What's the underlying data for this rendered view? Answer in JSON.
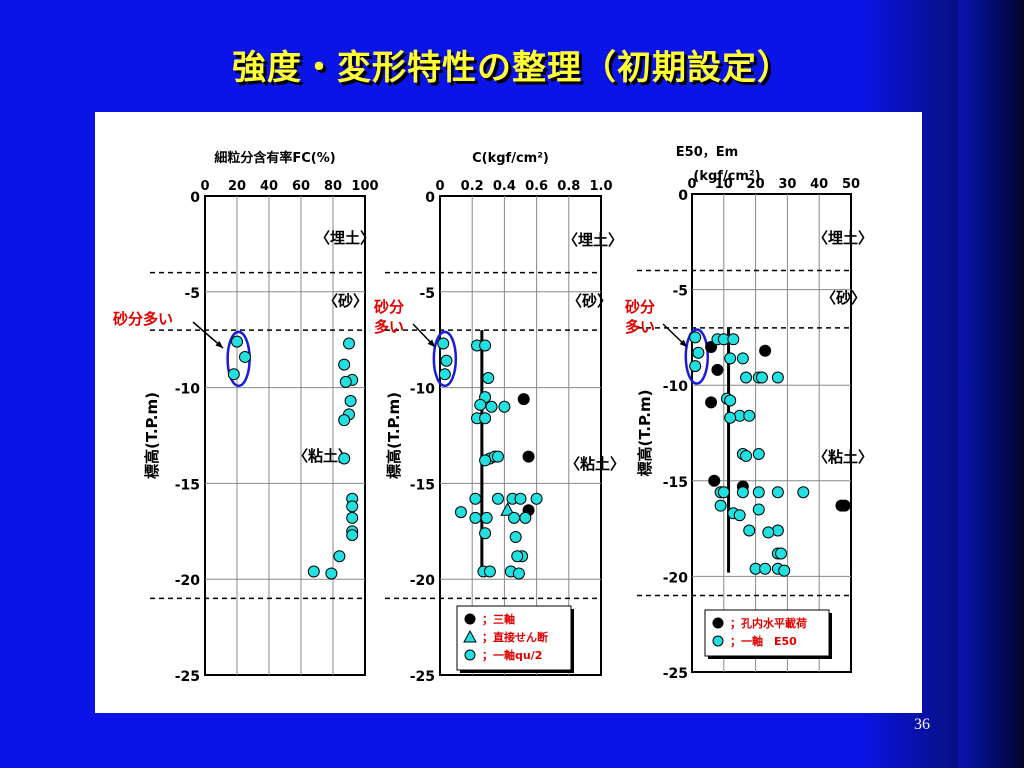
{
  "slide": {
    "title": "強度・変形特性の整理（初期設定）",
    "page_number": "36"
  },
  "colors": {
    "background": "#0a14e6",
    "title": "#ffff33",
    "cyan_marker": "#22e0e0",
    "black_marker": "#000000",
    "dashed_line": "#000000",
    "highlight_ellipse": "#1a1adc",
    "red_label": "#e00000"
  },
  "layer_labels": {
    "fill": "〈埋土〉",
    "sand": "〈砂〉",
    "clay": "〈粘土〉"
  },
  "sand_rich_label": "砂分多い",
  "sand_rich_label_split": [
    "砂分",
    "多い"
  ],
  "y_axis": {
    "label": "標高(T.P.m)",
    "ticks": [
      "0",
      "-5",
      "-10",
      "-15",
      "-20",
      "-25"
    ]
  },
  "chart_data": [
    {
      "type": "scatter",
      "title": "細粒分含有率FC(%)",
      "x_ticks": [
        "0",
        "20",
        "40",
        "60",
        "80",
        "100"
      ],
      "xlim": [
        0,
        100
      ],
      "ylim": [
        -25,
        0
      ],
      "ylabel": "標高(T.P.m)",
      "layer_boundaries": [
        -4,
        -7,
        -21
      ],
      "series": [
        {
          "marker": "cyan-circle",
          "points": [
            [
              20,
              -7.6
            ],
            [
              25,
              -8.4
            ],
            [
              18,
              -9.3
            ],
            [
              90,
              -7.7
            ],
            [
              87,
              -8.8
            ],
            [
              92,
              -9.6
            ],
            [
              88,
              -9.7
            ],
            [
              91,
              -10.7
            ],
            [
              90,
              -11.4
            ],
            [
              87,
              -11.7
            ],
            [
              87,
              -13.7
            ],
            [
              92,
              -15.8
            ],
            [
              92,
              -16.2
            ],
            [
              92,
              -16.8
            ],
            [
              92,
              -17.5
            ],
            [
              92,
              -17.7
            ],
            [
              84,
              -18.8
            ],
            [
              68,
              -19.6
            ],
            [
              79,
              -19.7
            ]
          ]
        }
      ]
    },
    {
      "type": "scatter",
      "title": "C(kgf/cm²)",
      "x_ticks": [
        "0",
        "0.2",
        "0.4",
        "0.6",
        "0.8",
        "1.0"
      ],
      "xlim": [
        0,
        1.0
      ],
      "ylim": [
        -25,
        0
      ],
      "ylabel": "標高(T.P.m)",
      "layer_boundaries": [
        -4,
        -7,
        -21
      ],
      "trend_line": {
        "x": 0.26,
        "y_from": -7,
        "y_to": -19.8
      },
      "series": [
        {
          "name": "；三軸",
          "marker": "black-circle",
          "points": [
            [
              0.52,
              -10.6
            ],
            [
              0.55,
              -13.6
            ],
            [
              0.55,
              -16.4
            ]
          ]
        },
        {
          "name": "；直接せん断",
          "marker": "cyan-triangle",
          "points": [
            [
              0.42,
              -16.4
            ]
          ]
        },
        {
          "name": "；一軸qu/2",
          "marker": "cyan-circle",
          "points": [
            [
              0.02,
              -7.7
            ],
            [
              0.04,
              -8.6
            ],
            [
              0.03,
              -9.3
            ],
            [
              0.23,
              -7.8
            ],
            [
              0.28,
              -7.8
            ],
            [
              0.3,
              -9.5
            ],
            [
              0.28,
              -10.5
            ],
            [
              0.25,
              -10.9
            ],
            [
              0.32,
              -11.0
            ],
            [
              0.4,
              -11.0
            ],
            [
              0.23,
              -11.6
            ],
            [
              0.28,
              -11.6
            ],
            [
              0.31,
              -13.7
            ],
            [
              0.34,
              -13.6
            ],
            [
              0.36,
              -13.6
            ],
            [
              0.28,
              -13.8
            ],
            [
              0.22,
              -15.8
            ],
            [
              0.36,
              -15.8
            ],
            [
              0.45,
              -15.8
            ],
            [
              0.5,
              -15.8
            ],
            [
              0.6,
              -15.8
            ],
            [
              0.13,
              -16.5
            ],
            [
              0.22,
              -16.8
            ],
            [
              0.29,
              -16.8
            ],
            [
              0.46,
              -16.8
            ],
            [
              0.53,
              -16.8
            ],
            [
              0.28,
              -17.6
            ],
            [
              0.47,
              -17.8
            ],
            [
              0.51,
              -18.8
            ],
            [
              0.48,
              -18.8
            ],
            [
              0.27,
              -19.6
            ],
            [
              0.31,
              -19.6
            ],
            [
              0.44,
              -19.6
            ],
            [
              0.49,
              -19.7
            ]
          ]
        }
      ]
    },
    {
      "type": "scatter",
      "title": "E₅₀，Em (kgf/cm²)",
      "title_line1": "E50，Em",
      "title_line2": "(kgf/cm²)",
      "x_ticks": [
        "0",
        "10",
        "20",
        "30",
        "40",
        "50"
      ],
      "xlim": [
        0,
        50
      ],
      "ylim": [
        -25,
        0
      ],
      "ylabel": "標高(T.P.m)",
      "layer_boundaries": [
        -4,
        -7,
        -21
      ],
      "trend_line": {
        "x": 11.5,
        "y_from": -7,
        "y_to": -19.8
      },
      "series": [
        {
          "name": "；孔内水平載荷",
          "marker": "black-circle",
          "points": [
            [
              6,
              -8.0
            ],
            [
              23,
              -8.2
            ],
            [
              8,
              -9.2
            ],
            [
              6,
              -10.9
            ],
            [
              7,
              -15.0
            ],
            [
              16,
              -15.3
            ],
            [
              47,
              -16.3
            ],
            [
              48,
              -16.3
            ]
          ]
        },
        {
          "name": "；一軸　E50",
          "marker": "cyan-circle",
          "points": [
            [
              1,
              -7.5
            ],
            [
              2,
              -8.3
            ],
            [
              1,
              -9.0
            ],
            [
              8,
              -7.6
            ],
            [
              10,
              -7.6
            ],
            [
              13,
              -7.6
            ],
            [
              16,
              -8.6
            ],
            [
              12,
              -8.6
            ],
            [
              17,
              -9.6
            ],
            [
              21,
              -9.6
            ],
            [
              22,
              -9.6
            ],
            [
              27,
              -9.6
            ],
            [
              11,
              -10.7
            ],
            [
              12,
              -10.8
            ],
            [
              15,
              -11.6
            ],
            [
              18,
              -11.6
            ],
            [
              12,
              -11.7
            ],
            [
              16,
              -13.6
            ],
            [
              17,
              -13.7
            ],
            [
              21,
              -13.6
            ],
            [
              9,
              -15.6
            ],
            [
              10,
              -15.6
            ],
            [
              16,
              -15.6
            ],
            [
              21,
              -15.6
            ],
            [
              27,
              -15.6
            ],
            [
              35,
              -15.6
            ],
            [
              9,
              -16.3
            ],
            [
              13,
              -16.7
            ],
            [
              15,
              -16.8
            ],
            [
              21,
              -16.5
            ],
            [
              18,
              -17.6
            ],
            [
              27,
              -17.6
            ],
            [
              24,
              -17.7
            ],
            [
              27,
              -18.8
            ],
            [
              28,
              -18.8
            ],
            [
              20,
              -19.6
            ],
            [
              23,
              -19.6
            ],
            [
              27,
              -19.6
            ],
            [
              29,
              -19.7
            ]
          ]
        }
      ]
    }
  ]
}
